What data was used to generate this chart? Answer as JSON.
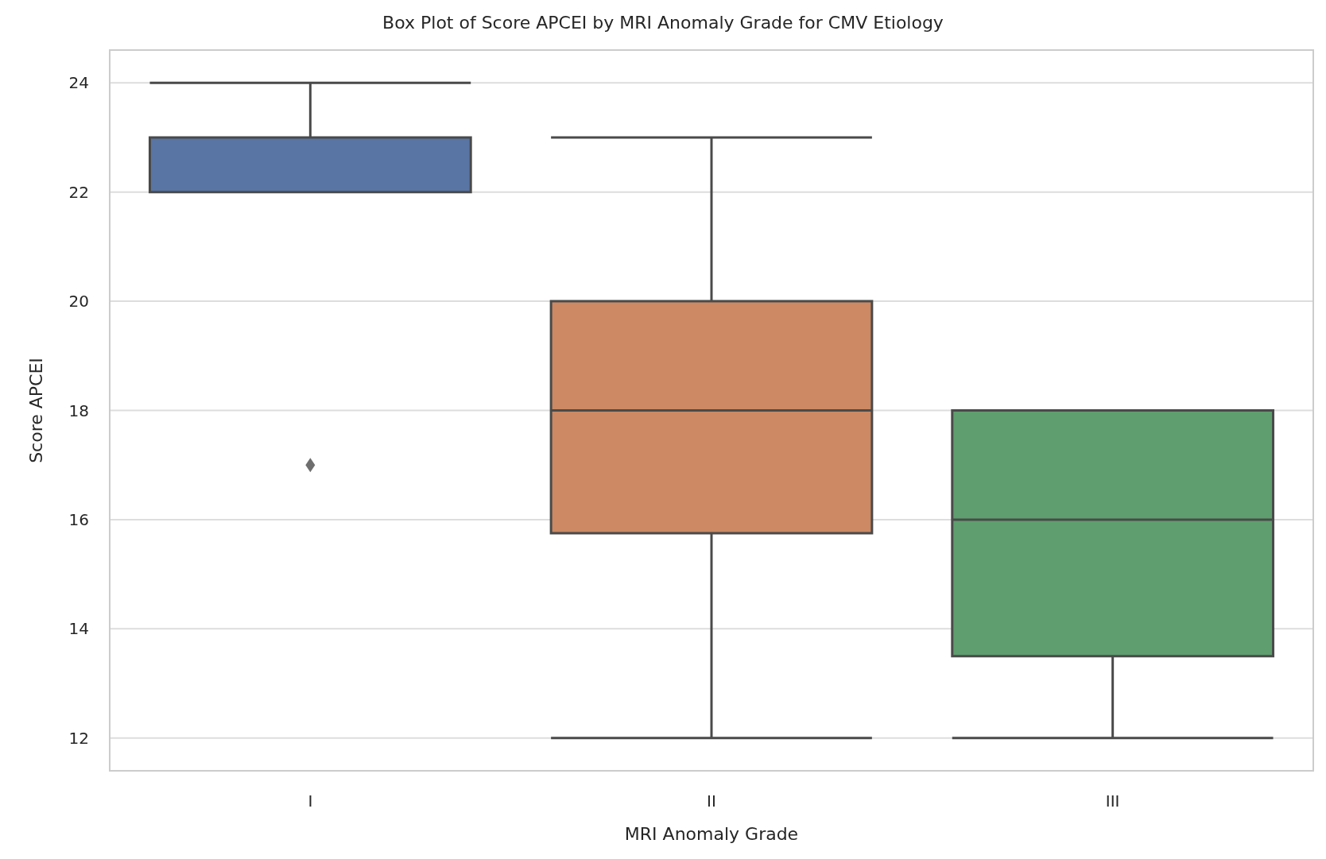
{
  "chart_data": {
    "type": "box",
    "title": "Box Plot of Score APCEI by MRI Anomaly Grade for CMV Etiology",
    "xlabel": "MRI Anomaly Grade",
    "ylabel": "Score APCEI",
    "categories": [
      "I",
      "II",
      "III"
    ],
    "colors": [
      "#5875a4",
      "#cc8963",
      "#5f9e6e"
    ],
    "boxes": [
      {
        "low": 22,
        "q1": 22,
        "median": 22,
        "q3": 23,
        "high": 24,
        "outliers": [
          17
        ]
      },
      {
        "low": 12,
        "q1": 15.75,
        "median": 18,
        "q3": 20,
        "high": 23
      },
      {
        "low": 12,
        "q1": 13.5,
        "median": 16,
        "q3": 18,
        "high": 18
      }
    ],
    "ylim": [
      11.4,
      24.6
    ],
    "yticks": [
      12,
      14,
      16,
      18,
      20,
      22,
      24
    ],
    "grid": "y",
    "marker": "diamond"
  }
}
